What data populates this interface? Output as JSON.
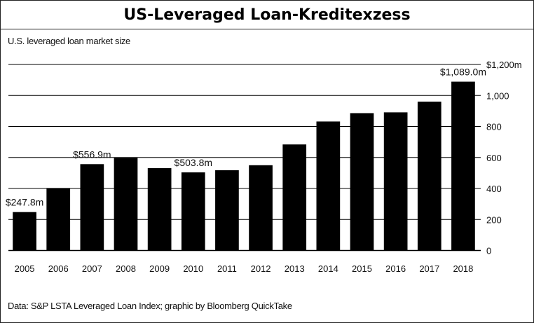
{
  "chart_data": {
    "type": "bar",
    "title": "US-Leveraged Loan-Kreditexzess",
    "subtitle": "U.S. leveraged loan market size",
    "source": "Data: S&P LSTA Leveraged Loan Index; graphic by Bloomberg QuickTake",
    "categories": [
      "2005",
      "2006",
      "2007",
      "2008",
      "2009",
      "2010",
      "2011",
      "2012",
      "2013",
      "2014",
      "2015",
      "2016",
      "2017",
      "2018"
    ],
    "values": [
      247.8,
      403,
      556.9,
      598,
      531,
      503.8,
      518,
      550,
      684,
      832,
      886,
      891,
      960,
      1089.0
    ],
    "ylim": [
      0,
      1200
    ],
    "y_axis_position": "right",
    "y_ticks": [
      0,
      200,
      400,
      600,
      800,
      1000,
      1200
    ],
    "y_tick_labels": [
      "0",
      "200",
      "400",
      "600",
      "800",
      "1,000",
      "$1,200m"
    ],
    "grid": true,
    "bar_color": "#000000",
    "annotations": [
      {
        "category": "2005",
        "text": "$247.8m"
      },
      {
        "category": "2007",
        "text": "$556.9m"
      },
      {
        "category": "2010",
        "text": "$503.8m"
      },
      {
        "category": "2018",
        "text": "$1,089.0m"
      }
    ]
  }
}
